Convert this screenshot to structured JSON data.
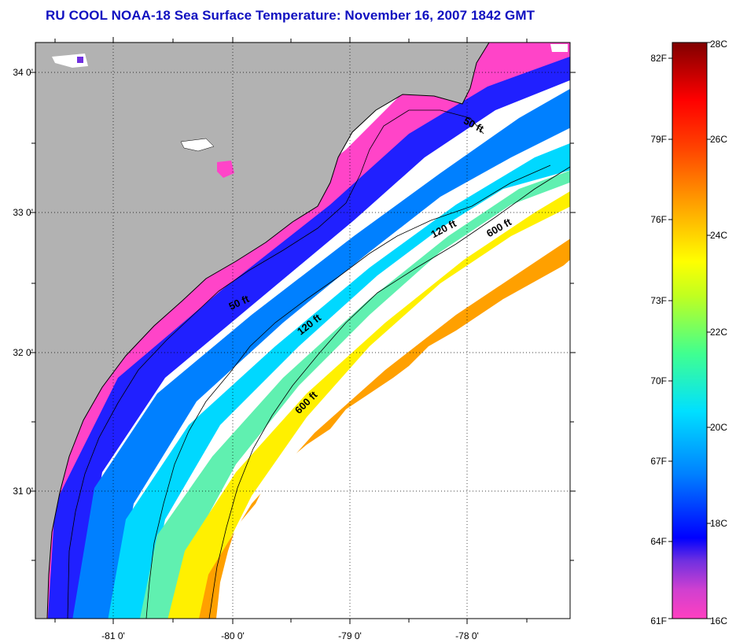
{
  "title": "RU COOL  NOAA-18  Sea Surface Temperature:  November 16, 2007 1842 GMT",
  "map": {
    "lat_labels": [
      "34 0'",
      "33 0'",
      "32 0'",
      "31 0'"
    ],
    "lon_labels": [
      "-81 0'",
      "-80 0'",
      "-79 0'",
      "-78 0'"
    ],
    "contour_labels": [
      "50 ft",
      "50 ft",
      "120 ft",
      "120 ft",
      "600 ft",
      "600 ft"
    ],
    "colors": {
      "land": "#b2b2b2",
      "no_data": "#ffffff",
      "coast": "#000000"
    }
  },
  "colorbar": {
    "fahrenheit_labels": [
      "82F",
      "79F",
      "76F",
      "73F",
      "70F",
      "67F",
      "64F",
      "61F"
    ],
    "celsius_labels": [
      "28C",
      "26C",
      "24C",
      "22C",
      "20C",
      "18C",
      "16C"
    ],
    "stops": [
      "#ff40c0",
      "#a030e0",
      "#0000ff",
      "#0090ff",
      "#00e0ff",
      "#40ffa0",
      "#ffff00",
      "#ffa000",
      "#ff2000",
      "#c00000",
      "#800000"
    ]
  }
}
